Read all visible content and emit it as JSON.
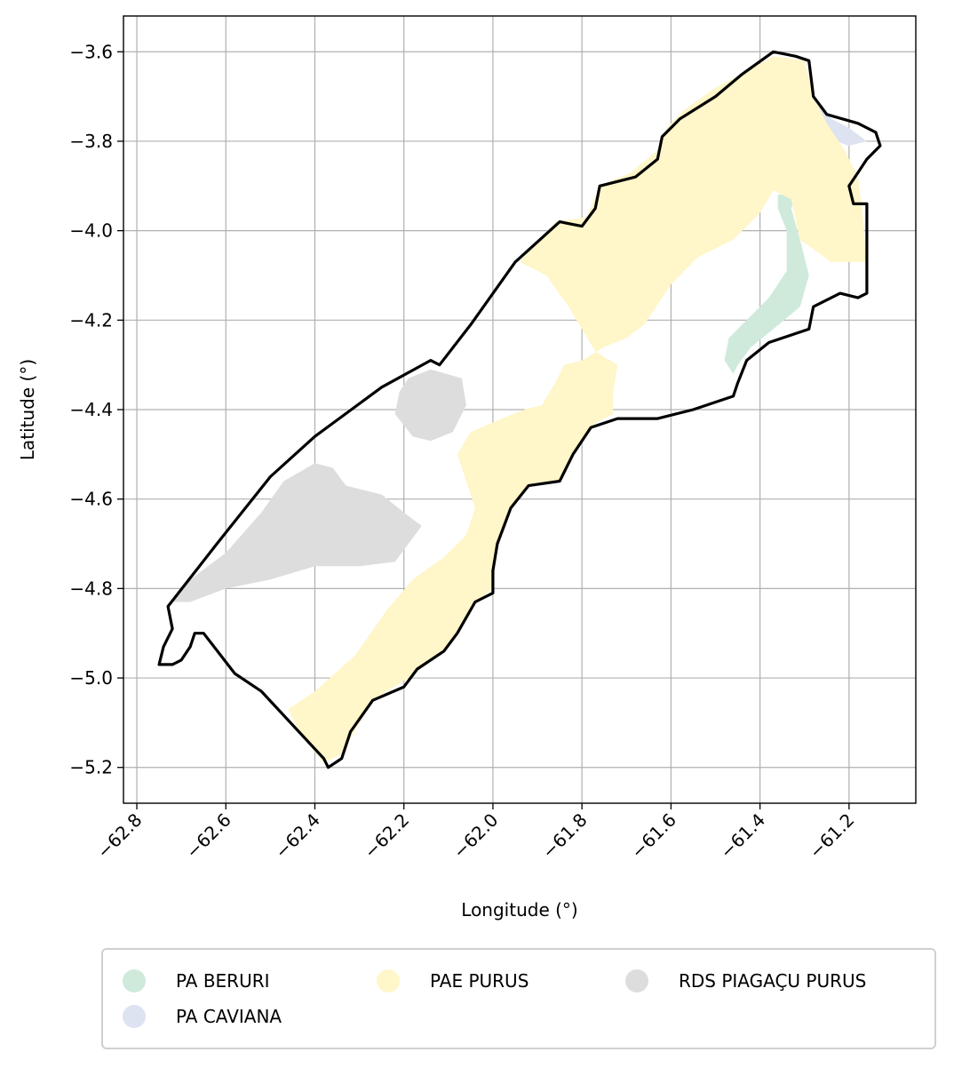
{
  "chart_data": {
    "type": "map",
    "xlabel": "Longitude (°)",
    "ylabel": "Latitude (°)",
    "xlim": [
      -62.83,
      -61.05
    ],
    "ylim": [
      -5.28,
      -3.52
    ],
    "xticks": [
      -62.8,
      -62.6,
      -62.4,
      -62.2,
      -62.0,
      -61.8,
      -61.6,
      -61.4,
      -61.2
    ],
    "xtick_labels": [
      "−62.8",
      "−62.6",
      "−62.4",
      "−62.2",
      "−62.0",
      "−61.8",
      "−61.6",
      "−61.4",
      "−61.2"
    ],
    "yticks": [
      -3.6,
      -3.8,
      -4.0,
      -4.2,
      -4.4,
      -4.6,
      -4.8,
      -5.0,
      -5.2
    ],
    "ytick_labels": [
      "−3.6",
      "−3.8",
      "−4.0",
      "−4.2",
      "−4.4",
      "−4.6",
      "−4.8",
      "−5.0",
      "−5.2"
    ],
    "grid": true,
    "legend_position": "bottom-outside",
    "boundary_color": "#000000",
    "boundary": [
      [
        -62.73,
        -4.84
      ],
      [
        -62.62,
        -4.7
      ],
      [
        -62.5,
        -4.55
      ],
      [
        -62.4,
        -4.46
      ],
      [
        -62.25,
        -4.35
      ],
      [
        -62.14,
        -4.29
      ],
      [
        -62.12,
        -4.3
      ],
      [
        -62.05,
        -4.21
      ],
      [
        -61.95,
        -4.07
      ],
      [
        -61.85,
        -3.98
      ],
      [
        -61.8,
        -3.99
      ],
      [
        -61.77,
        -3.95
      ],
      [
        -61.76,
        -3.9
      ],
      [
        -61.68,
        -3.88
      ],
      [
        -61.63,
        -3.84
      ],
      [
        -61.62,
        -3.79
      ],
      [
        -61.58,
        -3.75
      ],
      [
        -61.5,
        -3.7
      ],
      [
        -61.44,
        -3.65
      ],
      [
        -61.37,
        -3.6
      ],
      [
        -61.32,
        -3.61
      ],
      [
        -61.29,
        -3.62
      ],
      [
        -61.28,
        -3.7
      ],
      [
        -61.25,
        -3.74
      ],
      [
        -61.18,
        -3.76
      ],
      [
        -61.14,
        -3.78
      ],
      [
        -61.13,
        -3.81
      ],
      [
        -61.16,
        -3.84
      ],
      [
        -61.18,
        -3.87
      ],
      [
        -61.2,
        -3.9
      ],
      [
        -61.19,
        -3.94
      ],
      [
        -61.16,
        -3.94
      ],
      [
        -61.16,
        -4.14
      ],
      [
        -61.18,
        -4.15
      ],
      [
        -61.22,
        -4.14
      ],
      [
        -61.28,
        -4.17
      ],
      [
        -61.29,
        -4.22
      ],
      [
        -61.32,
        -4.23
      ],
      [
        -61.38,
        -4.25
      ],
      [
        -61.43,
        -4.29
      ],
      [
        -61.45,
        -4.34
      ],
      [
        -61.46,
        -4.37
      ],
      [
        -61.55,
        -4.4
      ],
      [
        -61.63,
        -4.42
      ],
      [
        -61.72,
        -4.42
      ],
      [
        -61.78,
        -4.44
      ],
      [
        -61.82,
        -4.5
      ],
      [
        -61.85,
        -4.56
      ],
      [
        -61.92,
        -4.57
      ],
      [
        -61.96,
        -4.62
      ],
      [
        -61.99,
        -4.7
      ],
      [
        -62.0,
        -4.76
      ],
      [
        -62.0,
        -4.81
      ],
      [
        -62.04,
        -4.83
      ],
      [
        -62.08,
        -4.9
      ],
      [
        -62.11,
        -4.94
      ],
      [
        -62.17,
        -4.98
      ],
      [
        -62.2,
        -5.02
      ],
      [
        -62.27,
        -5.05
      ],
      [
        -62.32,
        -5.12
      ],
      [
        -62.34,
        -5.18
      ],
      [
        -62.37,
        -5.2
      ],
      [
        -62.38,
        -5.18
      ],
      [
        -62.52,
        -5.03
      ],
      [
        -62.58,
        -4.99
      ],
      [
        -62.65,
        -4.9
      ],
      [
        -62.67,
        -4.9
      ],
      [
        -62.68,
        -4.93
      ],
      [
        -62.7,
        -4.96
      ],
      [
        -62.72,
        -4.97
      ],
      [
        -62.75,
        -4.97
      ],
      [
        -62.74,
        -4.93
      ],
      [
        -62.72,
        -4.89
      ],
      [
        -62.73,
        -4.84
      ]
    ],
    "series": [
      {
        "name": "PA BERURI",
        "color": "#cfeadb",
        "polygons": [
          [
            [
              -61.36,
              -3.92
            ],
            [
              -61.31,
              -3.91
            ],
            [
              -61.33,
              -3.95
            ],
            [
              -61.31,
              -4.02
            ],
            [
              -61.29,
              -4.1
            ],
            [
              -61.31,
              -4.17
            ],
            [
              -61.37,
              -4.22
            ],
            [
              -61.42,
              -4.26
            ],
            [
              -61.45,
              -4.3
            ],
            [
              -61.46,
              -4.32
            ],
            [
              -61.48,
              -4.29
            ],
            [
              -61.47,
              -4.24
            ],
            [
              -61.43,
              -4.2
            ],
            [
              -61.38,
              -4.15
            ],
            [
              -61.34,
              -4.09
            ],
            [
              -61.34,
              -4.0
            ],
            [
              -61.36,
              -3.95
            ]
          ]
        ]
      },
      {
        "name": "PA CAVIANA",
        "color": "#dde3f0",
        "polygons": [
          [
            [
              -61.28,
              -3.71
            ],
            [
              -61.26,
              -3.72
            ],
            [
              -61.24,
              -3.75
            ],
            [
              -61.2,
              -3.77
            ],
            [
              -61.16,
              -3.8
            ],
            [
              -61.2,
              -3.81
            ],
            [
              -61.26,
              -3.79
            ],
            [
              -61.29,
              -3.78
            ],
            [
              -61.28,
              -3.75
            ]
          ]
        ]
      },
      {
        "name": "PAE PURUS",
        "color": "#fff6c9",
        "polygons": [
          [
            [
              -61.5,
              -3.68
            ],
            [
              -61.44,
              -3.65
            ],
            [
              -61.37,
              -3.61
            ],
            [
              -61.3,
              -3.62
            ],
            [
              -61.28,
              -3.7
            ],
            [
              -61.25,
              -3.76
            ],
            [
              -61.21,
              -3.82
            ],
            [
              -61.18,
              -3.88
            ],
            [
              -61.17,
              -3.96
            ],
            [
              -61.16,
              -4.07
            ],
            [
              -61.24,
              -4.07
            ],
            [
              -61.31,
              -4.02
            ],
            [
              -61.33,
              -3.93
            ],
            [
              -61.37,
              -3.91
            ],
            [
              -61.4,
              -3.96
            ],
            [
              -61.46,
              -4.02
            ],
            [
              -61.54,
              -4.06
            ],
            [
              -61.6,
              -4.12
            ],
            [
              -61.66,
              -4.21
            ],
            [
              -61.7,
              -4.24
            ],
            [
              -61.75,
              -4.26
            ],
            [
              -61.8,
              -4.29
            ],
            [
              -61.84,
              -4.3
            ],
            [
              -61.86,
              -4.34
            ],
            [
              -61.89,
              -4.39
            ],
            [
              -61.93,
              -4.4
            ],
            [
              -61.98,
              -4.42
            ],
            [
              -62.05,
              -4.45
            ],
            [
              -62.08,
              -4.5
            ],
            [
              -62.06,
              -4.56
            ],
            [
              -62.04,
              -4.62
            ],
            [
              -62.06,
              -4.68
            ],
            [
              -62.11,
              -4.73
            ],
            [
              -62.18,
              -4.78
            ],
            [
              -62.24,
              -4.85
            ],
            [
              -62.31,
              -4.95
            ],
            [
              -62.4,
              -5.03
            ],
            [
              -62.46,
              -5.07
            ],
            [
              -62.43,
              -5.13
            ],
            [
              -62.38,
              -5.19
            ],
            [
              -62.34,
              -5.17
            ],
            [
              -62.27,
              -5.05
            ],
            [
              -62.19,
              -5.0
            ],
            [
              -62.11,
              -4.94
            ],
            [
              -62.04,
              -4.83
            ],
            [
              -62.0,
              -4.8
            ],
            [
              -61.99,
              -4.7
            ],
            [
              -61.96,
              -4.62
            ],
            [
              -61.92,
              -4.57
            ],
            [
              -61.85,
              -4.56
            ],
            [
              -61.81,
              -4.48
            ],
            [
              -61.77,
              -4.43
            ],
            [
              -61.73,
              -4.41
            ],
            [
              -61.73,
              -4.36
            ],
            [
              -61.72,
              -4.3
            ],
            [
              -61.77,
              -4.27
            ],
            [
              -61.83,
              -4.17
            ],
            [
              -61.88,
              -4.1
            ],
            [
              -61.94,
              -4.07
            ],
            [
              -61.86,
              -3.98
            ],
            [
              -61.79,
              -3.97
            ],
            [
              -61.76,
              -3.9
            ],
            [
              -61.69,
              -3.87
            ],
            [
              -61.63,
              -3.82
            ],
            [
              -61.61,
              -3.77
            ],
            [
              -61.57,
              -3.73
            ]
          ]
        ]
      },
      {
        "name": "RDS PIAGAÇU PURUS",
        "color": "#dddddd",
        "polygons": [
          [
            [
              -62.72,
              -4.83
            ],
            [
              -62.68,
              -4.78
            ],
            [
              -62.6,
              -4.72
            ],
            [
              -62.52,
              -4.63
            ],
            [
              -62.47,
              -4.56
            ],
            [
              -62.4,
              -4.52
            ],
            [
              -62.36,
              -4.53
            ],
            [
              -62.33,
              -4.57
            ],
            [
              -62.25,
              -4.59
            ],
            [
              -62.2,
              -4.63
            ],
            [
              -62.16,
              -4.66
            ],
            [
              -62.22,
              -4.74
            ],
            [
              -62.3,
              -4.75
            ],
            [
              -62.4,
              -4.75
            ],
            [
              -62.5,
              -4.78
            ],
            [
              -62.6,
              -4.8
            ],
            [
              -62.68,
              -4.83
            ]
          ],
          [
            [
              -62.19,
              -4.33
            ],
            [
              -62.14,
              -4.31
            ],
            [
              -62.07,
              -4.33
            ],
            [
              -62.06,
              -4.39
            ],
            [
              -62.09,
              -4.45
            ],
            [
              -62.14,
              -4.47
            ],
            [
              -62.18,
              -4.46
            ],
            [
              -62.22,
              -4.41
            ],
            [
              -62.21,
              -4.36
            ]
          ]
        ]
      }
    ]
  },
  "legend": {
    "items": [
      {
        "label": "PA BERURI",
        "color": "#cfeadb"
      },
      {
        "label": "PA CAVIANA",
        "color": "#dde3f0"
      },
      {
        "label": "PAE PURUS",
        "color": "#fff6c9"
      },
      {
        "label": "RDS PIAGAÇU PURUS",
        "color": "#dddddd"
      }
    ]
  }
}
